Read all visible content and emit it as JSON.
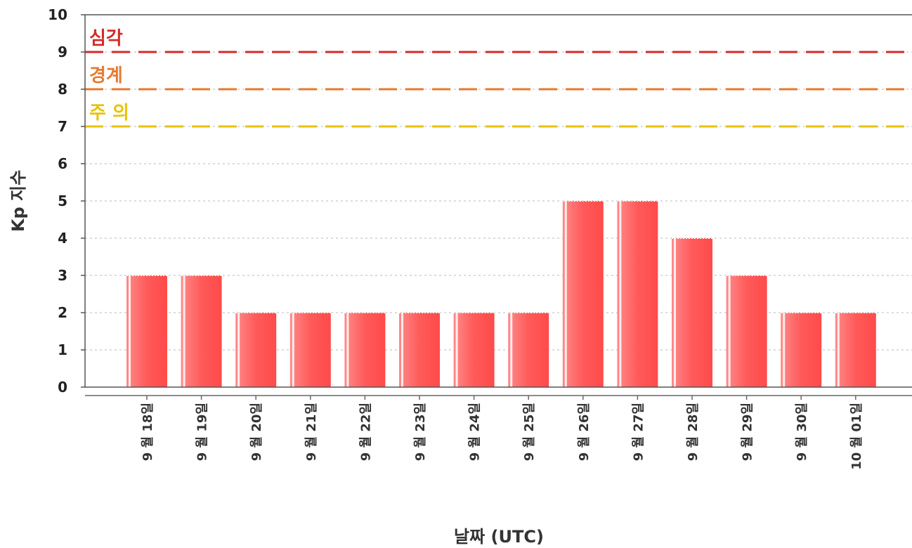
{
  "chart_data": {
    "type": "bar",
    "xlabel": "날짜 (UTC)",
    "ylabel": "Kp 지수",
    "ylim": [
      0,
      10
    ],
    "yticks": [
      0,
      1,
      2,
      3,
      4,
      5,
      6,
      7,
      8,
      9,
      10
    ],
    "grid": true,
    "categories": [
      "9 월 18일",
      "9 월 19일",
      "9 월 20일",
      "9 월 21일",
      "9 월 22일",
      "9 월 23일",
      "9 월 24일",
      "9 월 25일",
      "9 월 26일",
      "9 월 27일",
      "9 월 28일",
      "9 월 29일",
      "9 월 30일",
      "10 월 01일"
    ],
    "values": [
      3,
      3,
      2,
      2,
      2,
      2,
      2,
      2,
      5,
      5,
      4,
      3,
      2,
      2
    ],
    "bar_color": "#ff5a5a",
    "thresholds": [
      {
        "label": "심각",
        "value": 9,
        "color": "#d42a2a"
      },
      {
        "label": "경계",
        "value": 8,
        "color": "#e67a30"
      },
      {
        "label": "주 의",
        "value": 7,
        "color": "#e8c20a"
      }
    ]
  }
}
